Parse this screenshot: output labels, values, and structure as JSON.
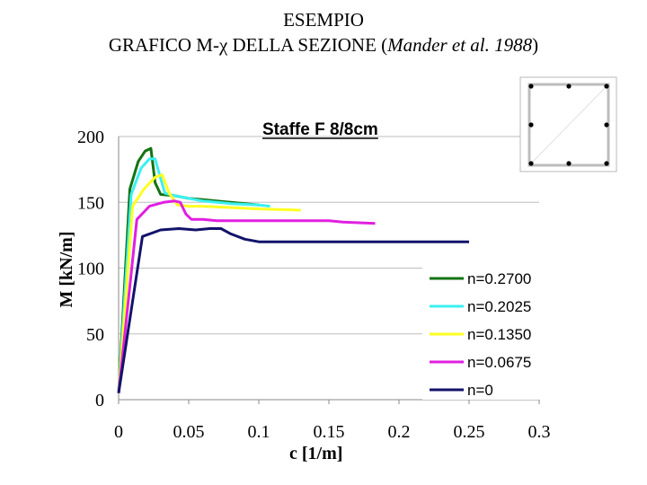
{
  "header": {
    "title_line1": "ESEMPIO",
    "title_line2_main": "GRAFICO M-χ DELLA SEZIONE (",
    "title_line2_italic": "Mander et al. 1988",
    "title_line2_end": ")"
  },
  "chart_data": {
    "type": "line",
    "title": "Staffe F 8/8cm",
    "xlabel": "c  [1/m]",
    "ylabel": "M [kN/m]",
    "xlim": [
      0,
      0.3
    ],
    "ylim": [
      0,
      200
    ],
    "xticks": [
      "0",
      "0.05",
      "0.1",
      "0.15",
      "0.2",
      "0.25",
      "0.3"
    ],
    "yticks": [
      "0",
      "50",
      "100",
      "150",
      "200"
    ],
    "grid": "horizontal",
    "legend_position": "bottom-right",
    "series": [
      {
        "name": "n=0.2700",
        "color": "#137313",
        "x": [
          0,
          0.008,
          0.014,
          0.019,
          0.023,
          0.026,
          0.03,
          0.04,
          0.05,
          0.06,
          0.08,
          0.1
        ],
        "y": [
          5,
          160,
          181,
          189,
          191,
          165,
          156,
          155,
          153,
          152,
          150,
          148
        ]
      },
      {
        "name": "n=0.2025",
        "color": "#3cf0f0",
        "x": [
          0,
          0.009,
          0.016,
          0.022,
          0.026,
          0.03,
          0.033,
          0.04,
          0.06,
          0.08,
          0.1,
          0.108
        ],
        "y": [
          5,
          156,
          176,
          183,
          183,
          168,
          157,
          155,
          151,
          149,
          148,
          147
        ]
      },
      {
        "name": "n=0.1350",
        "color": "#ffff22",
        "x": [
          0,
          0.01,
          0.018,
          0.026,
          0.031,
          0.036,
          0.042,
          0.05,
          0.06,
          0.08,
          0.1,
          0.13
        ],
        "y": [
          5,
          147,
          160,
          169,
          171,
          157,
          148,
          147,
          147,
          146,
          145,
          144
        ]
      },
      {
        "name": "n=0.0675",
        "color": "#e020e0",
        "x": [
          0,
          0.013,
          0.022,
          0.032,
          0.04,
          0.044,
          0.048,
          0.052,
          0.06,
          0.07,
          0.1,
          0.15,
          0.16,
          0.183
        ],
        "y": [
          5,
          137,
          147,
          150,
          151,
          150,
          141,
          137,
          137,
          136,
          136,
          136,
          135,
          134
        ]
      },
      {
        "name": "n=0",
        "color": "#13136a",
        "x": [
          0,
          0.017,
          0.03,
          0.043,
          0.055,
          0.065,
          0.073,
          0.08,
          0.09,
          0.1,
          0.12,
          0.15,
          0.2,
          0.25
        ],
        "y": [
          5,
          124,
          129,
          130,
          129,
          130,
          130,
          126,
          122,
          120,
          120,
          120,
          120,
          120
        ]
      }
    ]
  }
}
